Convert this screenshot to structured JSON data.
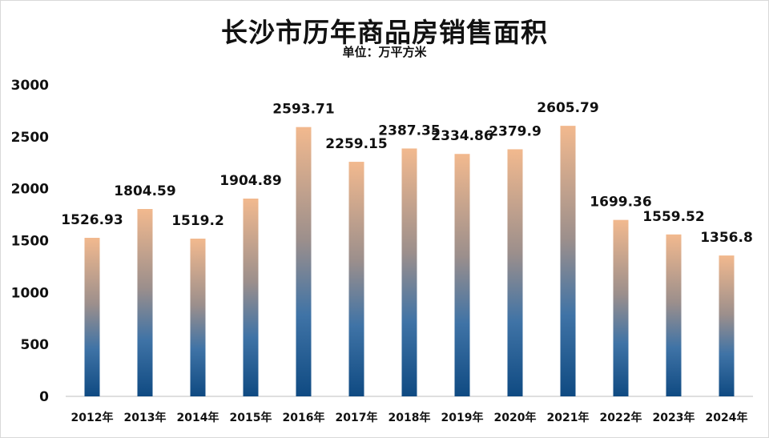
{
  "chart_data": {
    "type": "bar",
    "title": "长沙市历年商品房销售面积",
    "subtitle": "单位：万平方米",
    "categories": [
      "2012年",
      "2013年",
      "2014年",
      "2015年",
      "2016年",
      "2017年",
      "2018年",
      "2019年",
      "2020年",
      "2021年",
      "2022年",
      "2023年",
      "2024年"
    ],
    "values": [
      1526.93,
      1804.59,
      1519.2,
      1904.89,
      2593.71,
      2259.15,
      2387.35,
      2334.86,
      2379.9,
      2605.79,
      1699.36,
      1559.52,
      1356.8
    ],
    "value_labels": [
      "1526.93",
      "1804.59",
      "1519.2",
      "1904.89",
      "2593.71",
      "2259.15",
      "2387.35",
      "2334.86",
      "2379.9",
      "2605.79",
      "1699.36",
      "1559.52",
      "1356.8"
    ],
    "ylim": [
      0,
      3000
    ],
    "yticks": [
      "0",
      "500",
      "1000",
      "1500",
      "2000",
      "2500",
      "3000"
    ],
    "grid": false,
    "legend": "none",
    "colors": {
      "bar_top": "#f2b98e",
      "bar_bottom": "#0f4a82"
    }
  }
}
